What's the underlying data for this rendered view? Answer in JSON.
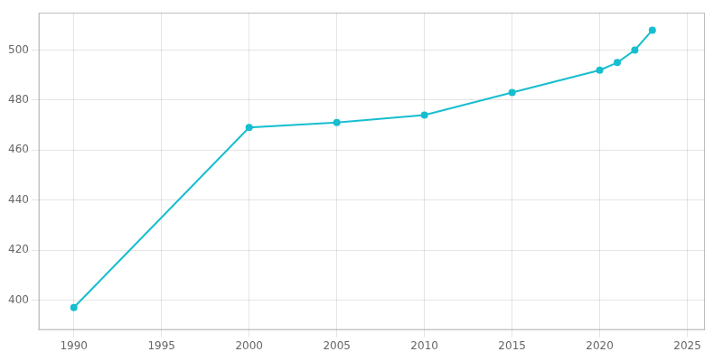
{
  "chart_data": {
    "type": "line",
    "x": [
      1990,
      2000,
      2005,
      2010,
      2015,
      2020,
      2021,
      2022,
      2023
    ],
    "values": [
      397,
      469,
      471,
      474,
      483,
      492,
      495,
      500,
      508
    ],
    "color": "#17BECF",
    "marker": "circle",
    "xlim": [
      1988,
      2026
    ],
    "ylim": [
      388,
      515
    ],
    "xticks": [
      1990,
      1995,
      2000,
      2005,
      2010,
      2015,
      2020,
      2025
    ],
    "yticks": [
      400,
      420,
      440,
      460,
      480,
      500
    ],
    "grid": true
  }
}
